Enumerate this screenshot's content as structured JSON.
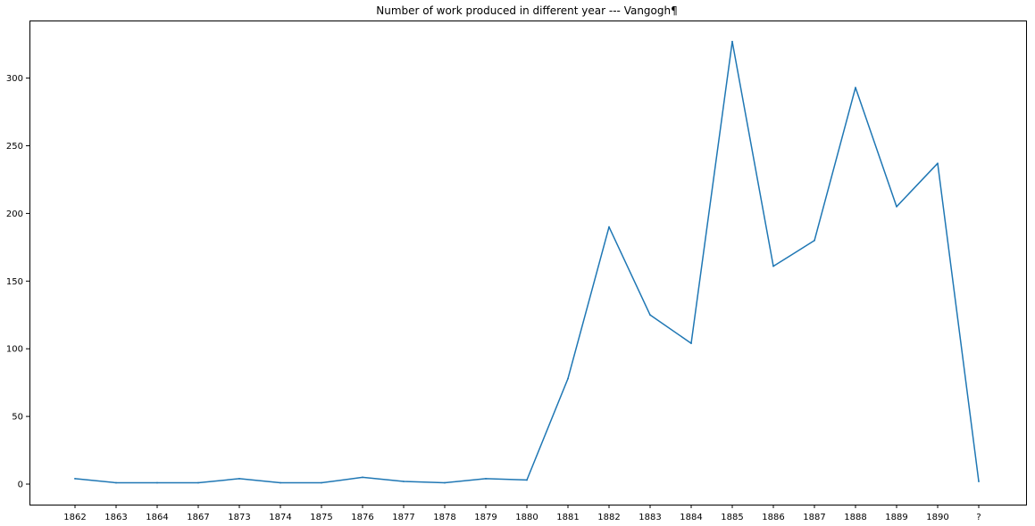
{
  "chart_data": {
    "type": "line",
    "title": "Number of work produced in different year --- Vangogh¶",
    "xlabel": "",
    "ylabel": "",
    "categories": [
      "1862",
      "1863",
      "1864",
      "1867",
      "1873",
      "1874",
      "1875",
      "1876",
      "1877",
      "1878",
      "1879",
      "1880",
      "1881",
      "1882",
      "1883",
      "1884",
      "1885",
      "1886",
      "1887",
      "1888",
      "1889",
      "1890",
      "?"
    ],
    "series": [
      {
        "color": "#1f77b4",
        "values": [
          4,
          1,
          1,
          1,
          4,
          1,
          1,
          5,
          2,
          1,
          4,
          3,
          78,
          190,
          125,
          104,
          327,
          161,
          180,
          293,
          205,
          237,
          2
        ]
      }
    ],
    "ylim": [
      -15,
      340
    ],
    "yticks": [
      0,
      50,
      100,
      150,
      200,
      250,
      300
    ],
    "grid": false,
    "legend": "none"
  }
}
